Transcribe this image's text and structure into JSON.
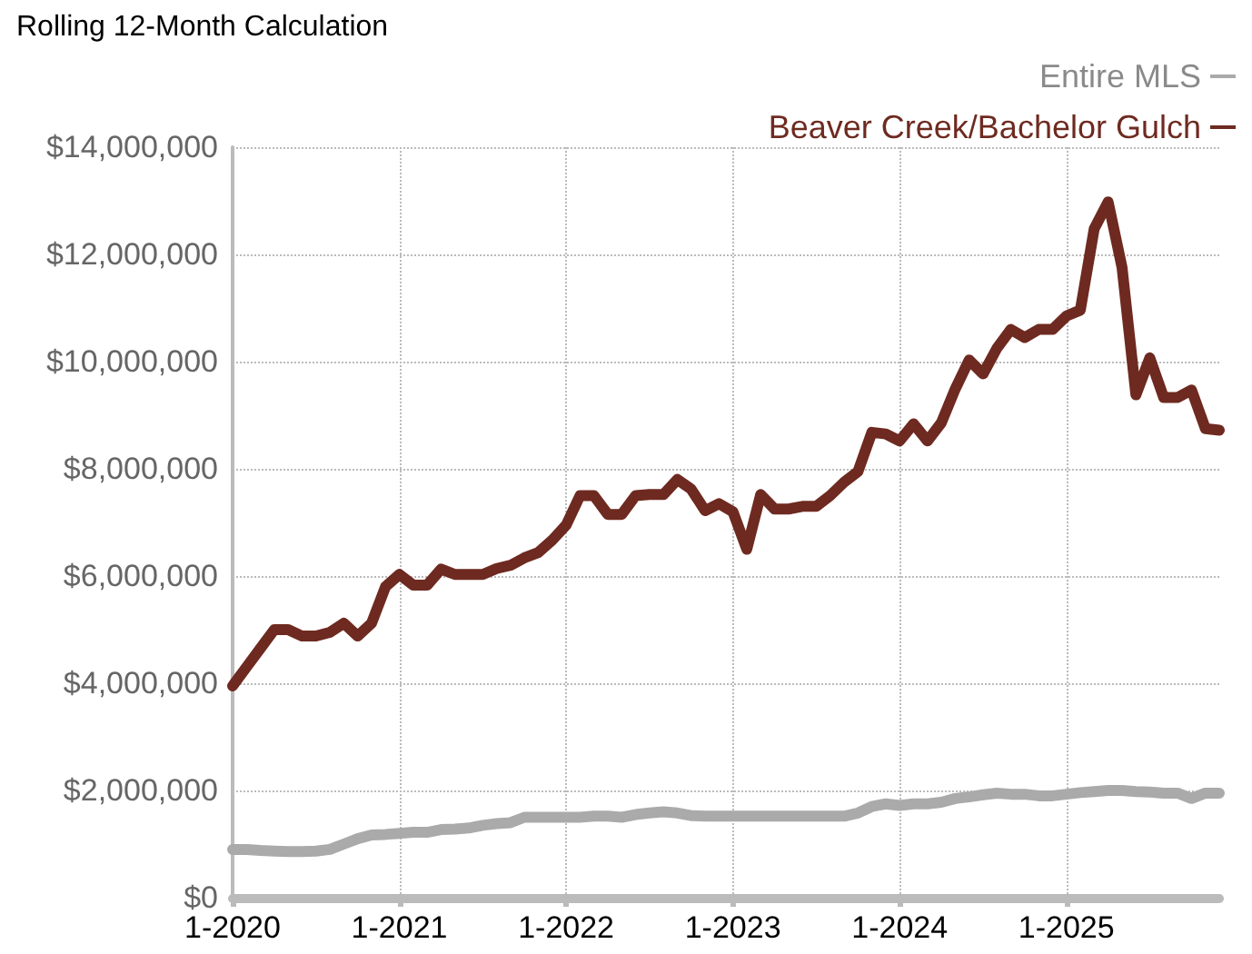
{
  "chart_data": {
    "type": "line",
    "title": "Rolling 12-Month Calculation",
    "categories": [
      "1-2020",
      null,
      null,
      null,
      null,
      null,
      null,
      null,
      null,
      null,
      null,
      null,
      "1-2021",
      null,
      null,
      null,
      null,
      null,
      null,
      null,
      null,
      null,
      null,
      null,
      "1-2022",
      null,
      null,
      null,
      null,
      null,
      null,
      null,
      null,
      null,
      null,
      null,
      "1-2023",
      null,
      null,
      null,
      null,
      null,
      null,
      null,
      null,
      null,
      null,
      null,
      "1-2024",
      null,
      null,
      null,
      null,
      null,
      null,
      null,
      null,
      null,
      null,
      null,
      "1-2025",
      null,
      null,
      null,
      null,
      null,
      null,
      null,
      null,
      null,
      null,
      null
    ],
    "series": [
      {
        "name": "Entire MLS",
        "color": "#aaaaaa",
        "values": [
          900000,
          900000,
          880000,
          870000,
          860000,
          860000,
          870000,
          900000,
          1000000,
          1100000,
          1170000,
          1180000,
          1200000,
          1220000,
          1220000,
          1270000,
          1280000,
          1300000,
          1350000,
          1380000,
          1400000,
          1500000,
          1500000,
          1500000,
          1500000,
          1500000,
          1520000,
          1520000,
          1500000,
          1550000,
          1580000,
          1600000,
          1580000,
          1530000,
          1520000,
          1520000,
          1520000,
          1520000,
          1520000,
          1520000,
          1520000,
          1520000,
          1520000,
          1520000,
          1520000,
          1580000,
          1700000,
          1750000,
          1720000,
          1750000,
          1750000,
          1780000,
          1850000,
          1880000,
          1920000,
          1950000,
          1930000,
          1930000,
          1900000,
          1900000,
          1930000,
          1960000,
          1980000,
          2000000,
          2000000,
          1980000,
          1970000,
          1950000,
          1950000,
          1850000,
          1950000,
          1950000
        ]
      },
      {
        "name": "Beaver Creek/Bachelor Gulch",
        "color": "#6e2a20",
        "values": [
          3950000,
          4300000,
          4650000,
          5000000,
          5000000,
          4880000,
          4880000,
          4950000,
          5120000,
          4880000,
          5120000,
          5800000,
          6030000,
          5830000,
          5830000,
          6130000,
          6030000,
          6030000,
          6030000,
          6140000,
          6200000,
          6340000,
          6440000,
          6670000,
          6950000,
          7500000,
          7500000,
          7150000,
          7150000,
          7500000,
          7520000,
          7520000,
          7800000,
          7620000,
          7220000,
          7350000,
          7200000,
          6500000,
          7520000,
          7250000,
          7250000,
          7300000,
          7300000,
          7500000,
          7750000,
          7950000,
          8680000,
          8650000,
          8520000,
          8840000,
          8520000,
          8860000,
          9490000,
          10030000,
          9770000,
          10250000,
          10600000,
          10450000,
          10600000,
          10600000,
          10850000,
          10960000,
          12480000,
          12980000,
          11760000,
          9380000,
          10070000,
          9330000,
          9330000,
          9470000,
          8750000,
          8720000
        ]
      }
    ],
    "ylim": [
      0,
      14000000
    ],
    "yticks": [
      {
        "value": 0,
        "label": "$0"
      },
      {
        "value": 2000000,
        "label": "$2,000,000"
      },
      {
        "value": 4000000,
        "label": "$4,000,000"
      },
      {
        "value": 6000000,
        "label": "$6,000,000"
      },
      {
        "value": 8000000,
        "label": "$8,000,000"
      },
      {
        "value": 10000000,
        "label": "$10,000,000"
      },
      {
        "value": 12000000,
        "label": "$12,000,000"
      },
      {
        "value": 14000000,
        "label": "$14,000,000"
      }
    ],
    "grid": true,
    "legend": "top right",
    "marker": "none",
    "line_style": "solid"
  }
}
